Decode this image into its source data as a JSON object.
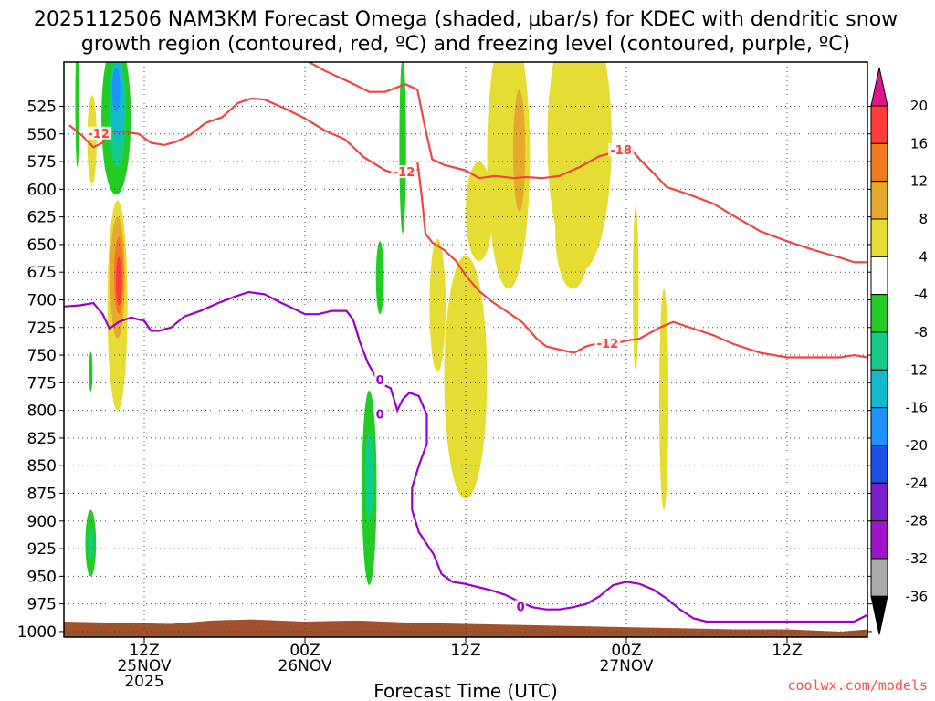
{
  "chart_data": {
    "type": "contour",
    "title_line1": "2025112506 NAM3KM Forecast Omega (shaded, μbar/s) for KDEC with dendritic snow",
    "title_line2": "growth region (contoured, red, ºC) and freezing level (contoured, purple, ºC)",
    "xlabel": "Forecast Time (UTC)",
    "credit": "coolwx.com/models",
    "xlim_hours": [
      0,
      60
    ],
    "ylim_hPa": [
      1005,
      485
    ],
    "y_ticks": [
      525,
      550,
      575,
      600,
      625,
      650,
      675,
      700,
      725,
      750,
      775,
      800,
      825,
      850,
      875,
      900,
      925,
      950,
      975,
      1000
    ],
    "x_ticks": [
      {
        "h": 6,
        "lines": [
          "12Z",
          "25NOV",
          "2025"
        ]
      },
      {
        "h": 18,
        "lines": [
          "00Z",
          "26NOV"
        ]
      },
      {
        "h": 30,
        "lines": [
          "12Z"
        ]
      },
      {
        "h": 42,
        "lines": [
          "00Z",
          "27NOV"
        ]
      },
      {
        "h": 54,
        "lines": [
          "12Z"
        ]
      }
    ],
    "colorbar": {
      "labels": [
        "20",
        "16",
        "12",
        "8",
        "4",
        "-4",
        "-8",
        "-12",
        "-16",
        "-20",
        "-24",
        "-28",
        "-32",
        "-36"
      ],
      "colors": [
        "#ff3b3b",
        "#ee7a22",
        "#e5aa2b",
        "#e5dd33",
        "#ffffff",
        "#22cc22",
        "#11cc88",
        "#11bbcc",
        "#1e90ff",
        "#1e50e6",
        "#7a1ec8",
        "#a014c8",
        "#aaaaaa"
      ],
      "top_color": "#e0148c",
      "bottom_color": "#000000"
    },
    "dgz_contours": [
      {
        "level": -12,
        "color": "#ee4444",
        "points": [
          [
            0.4,
            542
          ],
          [
            1.4,
            552
          ],
          [
            2.2,
            562
          ],
          [
            2.9,
            558
          ],
          [
            3.4,
            548
          ],
          [
            4.5,
            548
          ],
          [
            5.6,
            550
          ],
          [
            6.5,
            558
          ],
          [
            7.5,
            560
          ],
          [
            8.4,
            557
          ],
          [
            9.4,
            551
          ],
          [
            10.6,
            540
          ],
          [
            11.8,
            535
          ],
          [
            13,
            522
          ],
          [
            14,
            518
          ],
          [
            15,
            519
          ],
          [
            16.5,
            527
          ],
          [
            18,
            536
          ],
          [
            19.5,
            547
          ],
          [
            21,
            555
          ],
          [
            22.4,
            571
          ],
          [
            24,
            583
          ],
          [
            24.8,
            586
          ],
          [
            26,
            583
          ],
          [
            26.5,
            582
          ]
        ]
      },
      {
        "level": -18,
        "color": "#ee4444",
        "points": [
          [
            18,
            483
          ],
          [
            19.5,
            493
          ],
          [
            21.3,
            503
          ],
          [
            22.8,
            512
          ],
          [
            24,
            512
          ],
          [
            25.5,
            505
          ],
          [
            26.4,
            510
          ],
          [
            26.9,
            540
          ],
          [
            27.5,
            573
          ],
          [
            28.4,
            578
          ],
          [
            30,
            583
          ],
          [
            31,
            590
          ],
          [
            32.2,
            588
          ],
          [
            33.6,
            590
          ],
          [
            34.5,
            589
          ],
          [
            35.7,
            590
          ],
          [
            37,
            588
          ],
          [
            38.5,
            580
          ],
          [
            40,
            570
          ],
          [
            41,
            567
          ],
          [
            42.3,
            563
          ],
          [
            43,
            573
          ],
          [
            44,
            585
          ],
          [
            45,
            598
          ],
          [
            46.5,
            604
          ],
          [
            48.5,
            613
          ],
          [
            50,
            624
          ],
          [
            52,
            638
          ],
          [
            54,
            647
          ],
          [
            56,
            655
          ],
          [
            58,
            662
          ],
          [
            59,
            666
          ],
          [
            60,
            666
          ]
        ]
      },
      {
        "level": -12,
        "color": "#ee4444",
        "points": [
          [
            26.4,
            575
          ],
          [
            26.7,
            604
          ],
          [
            27,
            640
          ],
          [
            27.5,
            648
          ],
          [
            28.4,
            655
          ],
          [
            29.3,
            665
          ],
          [
            30,
            678
          ],
          [
            31,
            692
          ],
          [
            32,
            702
          ],
          [
            33,
            710
          ],
          [
            34.2,
            720
          ],
          [
            35.3,
            735
          ],
          [
            36,
            742
          ],
          [
            37,
            745
          ],
          [
            38.1,
            748
          ],
          [
            39,
            742
          ],
          [
            40,
            739
          ],
          [
            41,
            740
          ],
          [
            42,
            737
          ],
          [
            43,
            735
          ],
          [
            44.5,
            725
          ],
          [
            45.5,
            720
          ],
          [
            47,
            726
          ],
          [
            48.5,
            732
          ],
          [
            50,
            740
          ],
          [
            52,
            748
          ],
          [
            54,
            752
          ],
          [
            56,
            752
          ],
          [
            58,
            752
          ],
          [
            59,
            750
          ],
          [
            60,
            752
          ]
        ]
      }
    ],
    "freezing_level": {
      "level": 0,
      "color": "#9a00cc",
      "points": [
        [
          0,
          706
        ],
        [
          1.2,
          705
        ],
        [
          2.2,
          703
        ],
        [
          2.9,
          713
        ],
        [
          3.4,
          726
        ],
        [
          4.1,
          720
        ],
        [
          5,
          716
        ],
        [
          6,
          719
        ],
        [
          6.5,
          728
        ],
        [
          7.1,
          728
        ],
        [
          8,
          725
        ],
        [
          9,
          715
        ],
        [
          10.2,
          710
        ],
        [
          11.5,
          703
        ],
        [
          12.8,
          697
        ],
        [
          13.8,
          693
        ],
        [
          15,
          695
        ],
        [
          16.1,
          702
        ],
        [
          17,
          707
        ],
        [
          18,
          713
        ],
        [
          19,
          713
        ],
        [
          20,
          710
        ],
        [
          21.1,
          710
        ],
        [
          21.6,
          718
        ],
        [
          22.1,
          738
        ],
        [
          22.7,
          757
        ],
        [
          23.3,
          770
        ],
        [
          23.9,
          777
        ],
        [
          24.4,
          780
        ],
        [
          24.9,
          800
        ],
        [
          25.3,
          790
        ],
        [
          25.8,
          784
        ],
        [
          26.5,
          787
        ],
        [
          27.1,
          804
        ],
        [
          27.1,
          830
        ],
        [
          26.5,
          850
        ],
        [
          26,
          870
        ],
        [
          26,
          890
        ],
        [
          26.5,
          910
        ],
        [
          27.6,
          930
        ],
        [
          28.2,
          948
        ],
        [
          29,
          955
        ],
        [
          30,
          957
        ],
        [
          31,
          960
        ],
        [
          32,
          963
        ],
        [
          33,
          967
        ],
        [
          34,
          973
        ],
        [
          35,
          978
        ],
        [
          36,
          980
        ],
        [
          37,
          980
        ],
        [
          38,
          978
        ],
        [
          39,
          975
        ],
        [
          40,
          968
        ],
        [
          41,
          958
        ],
        [
          42,
          955
        ],
        [
          43,
          957
        ],
        [
          44,
          962
        ],
        [
          45,
          970
        ],
        [
          46,
          980
        ],
        [
          47,
          988
        ],
        [
          48,
          991
        ],
        [
          49,
          991
        ],
        [
          50,
          991
        ],
        [
          52,
          991
        ],
        [
          54,
          991
        ],
        [
          56,
          991
        ],
        [
          58,
          991
        ],
        [
          59,
          991
        ],
        [
          60,
          985
        ]
      ]
    },
    "contour_labels": [
      {
        "text": "-12",
        "h": 2.6,
        "p": 550,
        "color": "#ee4444"
      },
      {
        "text": "-12",
        "h": 25.4,
        "p": 585,
        "color": "#ee4444"
      },
      {
        "text": "-18",
        "h": 41.6,
        "p": 565,
        "color": "#ee4444"
      },
      {
        "text": "-12",
        "h": 40.6,
        "p": 740,
        "color": "#ee4444"
      },
      {
        "text": "0",
        "h": 23.6,
        "p": 773,
        "color": "#9a00cc"
      },
      {
        "text": "0",
        "h": 23.6,
        "p": 804,
        "color": "#9a00cc"
      },
      {
        "text": "0",
        "h": 34.1,
        "p": 978,
        "color": "#9a00cc"
      }
    ],
    "omega_blobs": [
      {
        "v": 4,
        "h": 2.1,
        "p": 555,
        "rh": 0.35,
        "rp": 40
      },
      {
        "v": -4,
        "h": 1.0,
        "p": 520,
        "rh": 0.15,
        "rp": 60
      },
      {
        "v": -4,
        "h": 2.0,
        "p": 765,
        "rh": 0.14,
        "rp": 18
      },
      {
        "v": -4,
        "h": 3.9,
        "p": 535,
        "rh": 1.1,
        "rp": 70
      },
      {
        "v": -4,
        "h": 4.0,
        "p": 545,
        "rh": 0.9,
        "rp": 55
      },
      {
        "v": -8,
        "h": 4.0,
        "p": 530,
        "rh": 0.65,
        "rp": 50
      },
      {
        "v": -12,
        "h": 4.0,
        "p": 520,
        "rh": 0.45,
        "rp": 38
      },
      {
        "v": -16,
        "h": 3.9,
        "p": 510,
        "rh": 0.3,
        "rp": 20
      },
      {
        "v": 4,
        "h": 4.0,
        "p": 705,
        "rh": 0.75,
        "rp": 95
      },
      {
        "v": 8,
        "h": 4.0,
        "p": 680,
        "rh": 0.55,
        "rp": 55
      },
      {
        "v": 12,
        "h": 4.1,
        "p": 678,
        "rh": 0.35,
        "rp": 35
      },
      {
        "v": 16,
        "h": 4.1,
        "p": 683,
        "rh": 0.22,
        "rp": 22
      },
      {
        "v": -4,
        "h": 2.0,
        "p": 920,
        "rh": 0.4,
        "rp": 30
      },
      {
        "v": -8,
        "h": 2.0,
        "p": 920,
        "rh": 0.2,
        "rp": 14
      },
      {
        "v": -4,
        "h": 22.8,
        "p": 870,
        "rh": 0.55,
        "rp": 88
      },
      {
        "v": -8,
        "h": 22.8,
        "p": 860,
        "rh": 0.3,
        "rp": 40
      },
      {
        "v": -4,
        "h": 23.6,
        "p": 680,
        "rh": 0.3,
        "rp": 33
      },
      {
        "v": -4,
        "h": 25.3,
        "p": 560,
        "rh": 0.25,
        "rp": 80
      },
      {
        "v": 4,
        "h": 27.9,
        "p": 705,
        "rh": 0.6,
        "rp": 60
      },
      {
        "v": 4,
        "h": 30.0,
        "p": 770,
        "rh": 1.6,
        "rp": 110
      },
      {
        "v": 4,
        "h": 31.0,
        "p": 620,
        "rh": 1.0,
        "rp": 45
      },
      {
        "v": 4,
        "h": 33.2,
        "p": 570,
        "rh": 1.6,
        "rp": 120
      },
      {
        "v": 8,
        "h": 34.0,
        "p": 565,
        "rh": 0.45,
        "rp": 55
      },
      {
        "v": 4,
        "h": 38.5,
        "p": 555,
        "rh": 2.4,
        "rp": 120
      },
      {
        "v": 4,
        "h": 38.0,
        "p": 640,
        "rh": 1.3,
        "rp": 50
      },
      {
        "v": 4,
        "h": 42.7,
        "p": 690,
        "rh": 0.22,
        "rp": 75
      },
      {
        "v": 4,
        "h": 44.8,
        "p": 790,
        "rh": 0.35,
        "rp": 100
      }
    ],
    "surface": {
      "color": "#a0522d",
      "points": [
        [
          0,
          991
        ],
        [
          4,
          992
        ],
        [
          8,
          993
        ],
        [
          11,
          990
        ],
        [
          14,
          989
        ],
        [
          18,
          991
        ],
        [
          22,
          990
        ],
        [
          26,
          992
        ],
        [
          30,
          993
        ],
        [
          34,
          994
        ],
        [
          38,
          995
        ],
        [
          42,
          996
        ],
        [
          46,
          997
        ],
        [
          50,
          998
        ],
        [
          54,
          998
        ],
        [
          56,
          999
        ],
        [
          58,
          1000
        ],
        [
          60,
          998
        ]
      ]
    }
  }
}
